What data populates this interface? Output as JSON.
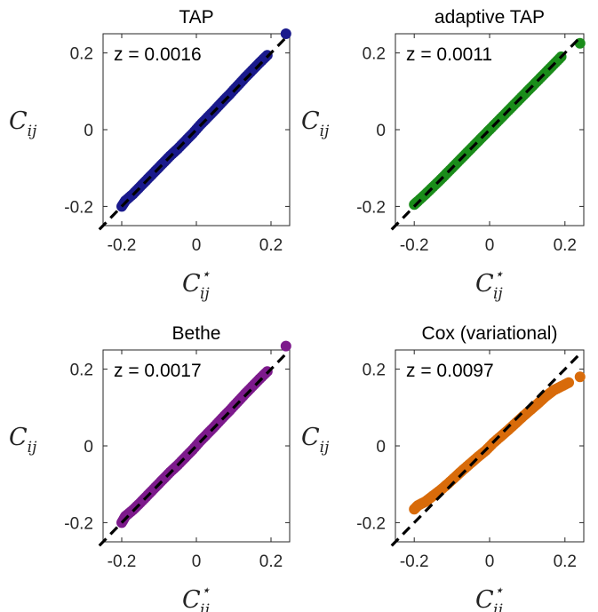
{
  "chart_data": [
    {
      "type": "scatter",
      "title": "TAP",
      "annotation": "z = 0.0016",
      "xlabel": "C",
      "xlabel_sup": "⋆",
      "xlabel_sub": "ij",
      "ylabel": "C",
      "ylabel_sub": "ij",
      "xlim": [
        -0.25,
        0.25
      ],
      "ylim": [
        -0.25,
        0.25
      ],
      "xticks": [
        -0.2,
        0,
        0.2
      ],
      "yticks": [
        -0.2,
        0,
        0.2
      ],
      "xtick_labels": [
        "-0.2",
        "0",
        "0.2"
      ],
      "ytick_labels": [
        "-0.2",
        "0",
        "0.2"
      ],
      "color": "#1a1a8c",
      "reference_line": "y = x",
      "series": [
        {
          "x": [
            -0.2,
            -0.19,
            -0.17,
            -0.15,
            -0.13,
            -0.11,
            -0.09,
            -0.07,
            -0.05,
            -0.03,
            -0.01,
            0.01,
            0.03,
            0.05,
            0.07,
            0.09,
            0.11,
            0.13,
            0.15,
            0.17,
            0.19,
            0.24
          ],
          "y": [
            -0.2,
            -0.185,
            -0.168,
            -0.148,
            -0.128,
            -0.108,
            -0.088,
            -0.068,
            -0.05,
            -0.03,
            -0.01,
            0.012,
            0.032,
            0.052,
            0.073,
            0.093,
            0.114,
            0.135,
            0.155,
            0.175,
            0.194,
            0.25
          ]
        }
      ]
    },
    {
      "type": "scatter",
      "title": "adaptive TAP",
      "annotation": "z = 0.0011",
      "xlabel": "C",
      "xlabel_sup": "⋆",
      "xlabel_sub": "ij",
      "ylabel": "C",
      "ylabel_sub": "ij",
      "xlim": [
        -0.25,
        0.25
      ],
      "ylim": [
        -0.25,
        0.25
      ],
      "xticks": [
        -0.2,
        0,
        0.2
      ],
      "yticks": [
        -0.2,
        0,
        0.2
      ],
      "xtick_labels": [
        "-0.2",
        "0",
        "0.2"
      ],
      "ytick_labels": [
        "-0.2",
        "0",
        "0.2"
      ],
      "color": "#1a8c1a",
      "reference_line": "y = x",
      "series": [
        {
          "x": [
            -0.2,
            -0.19,
            -0.17,
            -0.15,
            -0.13,
            -0.11,
            -0.09,
            -0.07,
            -0.05,
            -0.03,
            -0.01,
            0.01,
            0.03,
            0.05,
            0.07,
            0.09,
            0.11,
            0.13,
            0.15,
            0.17,
            0.19,
            0.24
          ],
          "y": [
            -0.195,
            -0.186,
            -0.168,
            -0.149,
            -0.13,
            -0.11,
            -0.09,
            -0.07,
            -0.05,
            -0.03,
            -0.01,
            0.01,
            0.03,
            0.05,
            0.07,
            0.09,
            0.11,
            0.13,
            0.15,
            0.17,
            0.19,
            0.225
          ]
        }
      ]
    },
    {
      "type": "scatter",
      "title": "Bethe",
      "annotation": "z = 0.0017",
      "xlabel": "C",
      "xlabel_sup": "⋆",
      "xlabel_sub": "ij",
      "ylabel": "C",
      "ylabel_sub": "ij",
      "xlim": [
        -0.25,
        0.25
      ],
      "ylim": [
        -0.25,
        0.25
      ],
      "xticks": [
        -0.2,
        0,
        0.2
      ],
      "yticks": [
        -0.2,
        0,
        0.2
      ],
      "xtick_labels": [
        "-0.2",
        "0",
        "0.2"
      ],
      "ytick_labels": [
        "-0.2",
        "0",
        "0.2"
      ],
      "color": "#7d1a8c",
      "reference_line": "y = x",
      "series": [
        {
          "x": [
            -0.2,
            -0.19,
            -0.17,
            -0.15,
            -0.13,
            -0.11,
            -0.09,
            -0.07,
            -0.05,
            -0.03,
            -0.01,
            0.01,
            0.03,
            0.05,
            0.07,
            0.09,
            0.11,
            0.13,
            0.15,
            0.17,
            0.19,
            0.24
          ],
          "y": [
            -0.2,
            -0.183,
            -0.167,
            -0.148,
            -0.128,
            -0.108,
            -0.088,
            -0.068,
            -0.05,
            -0.03,
            -0.01,
            0.012,
            0.032,
            0.052,
            0.073,
            0.093,
            0.114,
            0.135,
            0.155,
            0.175,
            0.194,
            0.26
          ]
        }
      ]
    },
    {
      "type": "scatter",
      "title": "Cox (variational)",
      "annotation": "z = 0.0097",
      "xlabel": "C",
      "xlabel_sup": "⋆",
      "xlabel_sub": "ij",
      "ylabel": "C",
      "ylabel_sub": "ij",
      "xlim": [
        -0.25,
        0.25
      ],
      "ylim": [
        -0.25,
        0.25
      ],
      "xticks": [
        -0.2,
        0,
        0.2
      ],
      "yticks": [
        -0.2,
        0,
        0.2
      ],
      "xtick_labels": [
        "-0.2",
        "0",
        "0.2"
      ],
      "ytick_labels": [
        "-0.2",
        "0",
        "0.2"
      ],
      "color": "#d86b0a",
      "reference_line": "y = x",
      "series": [
        {
          "x": [
            -0.2,
            -0.19,
            -0.17,
            -0.15,
            -0.13,
            -0.11,
            -0.09,
            -0.07,
            -0.05,
            -0.03,
            -0.01,
            0.01,
            0.03,
            0.05,
            0.07,
            0.09,
            0.11,
            0.13,
            0.15,
            0.17,
            0.19,
            0.21,
            0.24
          ],
          "y": [
            -0.165,
            -0.155,
            -0.145,
            -0.13,
            -0.115,
            -0.098,
            -0.08,
            -0.062,
            -0.045,
            -0.028,
            -0.012,
            0.008,
            0.025,
            0.042,
            0.06,
            0.078,
            0.095,
            0.112,
            0.13,
            0.145,
            0.155,
            0.165,
            0.18
          ]
        }
      ]
    }
  ]
}
